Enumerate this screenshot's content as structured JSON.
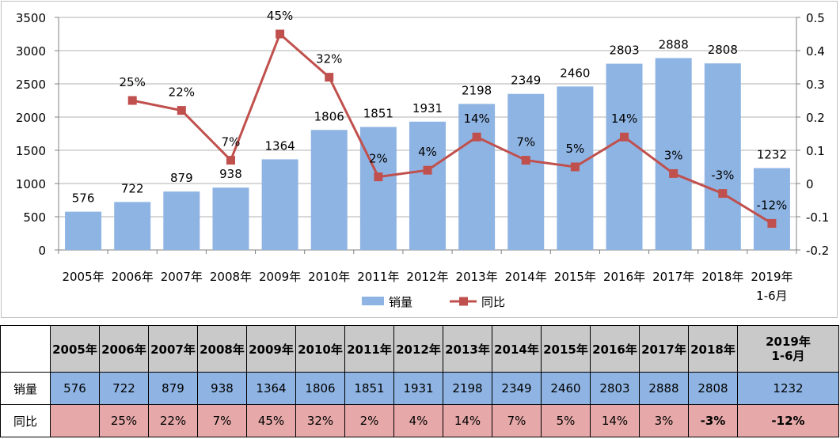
{
  "chart_data": {
    "type": "bar+line",
    "categories": [
      "2005年",
      "2006年",
      "2007年",
      "2008年",
      "2009年",
      "2010年",
      "2011年",
      "2012年",
      "2013年",
      "2014年",
      "2015年",
      "2016年",
      "2017年",
      "2018年",
      "2019年\n1-6月"
    ],
    "series": [
      {
        "name": "销量",
        "type": "bar",
        "axis": "left",
        "values": [
          576,
          722,
          879,
          938,
          1364,
          1806,
          1851,
          1931,
          2198,
          2349,
          2460,
          2803,
          2888,
          2808,
          1232
        ],
        "labels": [
          "576",
          "722",
          "879",
          "938",
          "1364",
          "1806",
          "1851",
          "1931",
          "2198",
          "2349",
          "2460",
          "2803",
          "2888",
          "2808",
          "1232"
        ]
      },
      {
        "name": "同比",
        "type": "line",
        "axis": "right",
        "values": [
          null,
          0.25,
          0.22,
          0.07,
          0.45,
          0.32,
          0.02,
          0.04,
          0.14,
          0.07,
          0.05,
          0.14,
          0.03,
          -0.03,
          -0.12
        ],
        "labels": [
          "",
          "25%",
          "22%",
          "7%",
          "45%",
          "32%",
          "2%",
          "4%",
          "14%",
          "7%",
          "5%",
          "14%",
          "3%",
          "-3%",
          "-12%"
        ]
      }
    ],
    "y_left": {
      "min": 0,
      "max": 3500,
      "ticks": [
        "0",
        "500",
        "1000",
        "1500",
        "2000",
        "2500",
        "3000",
        "3500"
      ]
    },
    "y_right": {
      "min": -0.2,
      "max": 0.5,
      "ticks": [
        "-0.2",
        "-0.1",
        "0",
        "0.1",
        "0.2",
        "0.3",
        "0.4",
        "0.5"
      ]
    },
    "grid": true,
    "legend_position": "bottom",
    "colors": {
      "bar": "#8eb4e3",
      "line": "#c0504d",
      "grid": "#b0b0b0"
    }
  },
  "table": {
    "headers": [
      "2005年",
      "2006年",
      "2007年",
      "2008年",
      "2009年",
      "2010年",
      "2011年",
      "2012年",
      "2013年",
      "2014年",
      "2015年",
      "2016年",
      "2017年",
      "2018年"
    ],
    "last_header_line1": "2019年",
    "last_header_line2": "1-6月",
    "rows": [
      {
        "label": "销量",
        "cells": [
          "576",
          "722",
          "879",
          "938",
          "1364",
          "1806",
          "1851",
          "1931",
          "2198",
          "2349",
          "2460",
          "2803",
          "2888",
          "2808",
          "1232"
        ]
      },
      {
        "label": "同比",
        "cells": [
          "",
          "25%",
          "22%",
          "7%",
          "45%",
          "32%",
          "2%",
          "4%",
          "14%",
          "7%",
          "5%",
          "14%",
          "3%",
          "-3%",
          "-12%"
        ]
      }
    ]
  }
}
